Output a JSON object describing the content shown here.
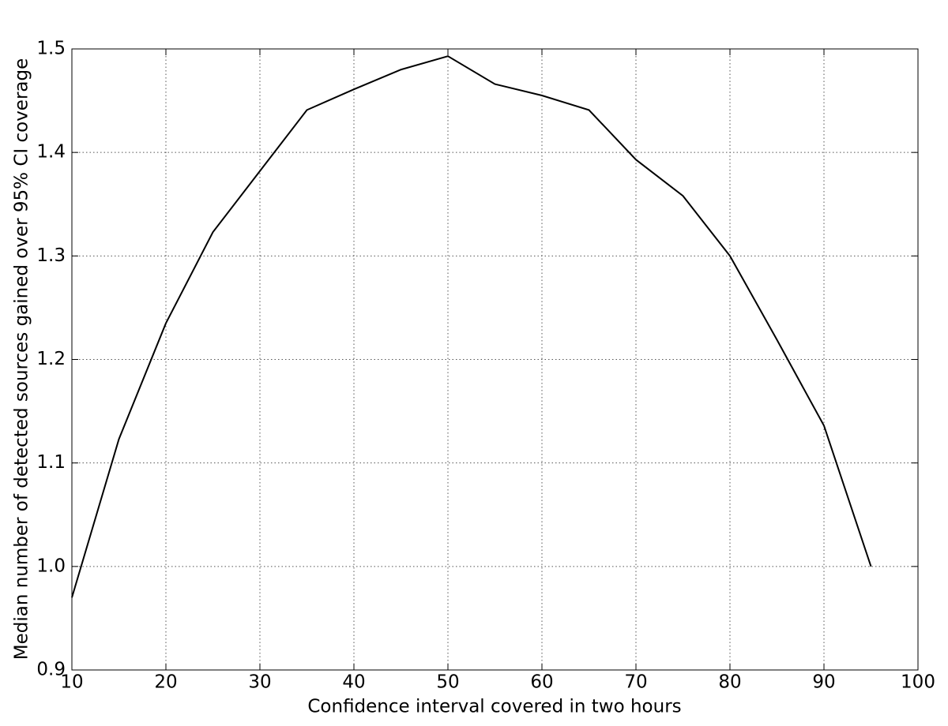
{
  "chart_data": {
    "type": "line",
    "xlabel": "Confidence interval covered in two hours",
    "ylabel": "Median number of detected sources gained over 95% CI coverage",
    "x": [
      10,
      15,
      20,
      25,
      30,
      35,
      40,
      45,
      50,
      55,
      60,
      65,
      70,
      75,
      80,
      85,
      90,
      95
    ],
    "series": [
      {
        "color": "#000000",
        "values": [
          0.97,
          1.123,
          1.235,
          1.323,
          1.382,
          1.441,
          1.461,
          1.48,
          1.493,
          1.466,
          1.455,
          1.441,
          1.393,
          1.358,
          1.3,
          1.219,
          1.136,
          1.0
        ]
      }
    ],
    "xlim": [
      10,
      100
    ],
    "xticks": [
      10,
      20,
      30,
      40,
      50,
      60,
      70,
      80,
      90,
      100
    ],
    "ylim": [
      0.9,
      1.5
    ],
    "yticks": [
      0.9,
      {
        "value": 1.0,
        "label": "1.0"
      },
      1.1,
      1.2,
      1.3,
      1.4,
      1.5
    ],
    "grid": true
  }
}
